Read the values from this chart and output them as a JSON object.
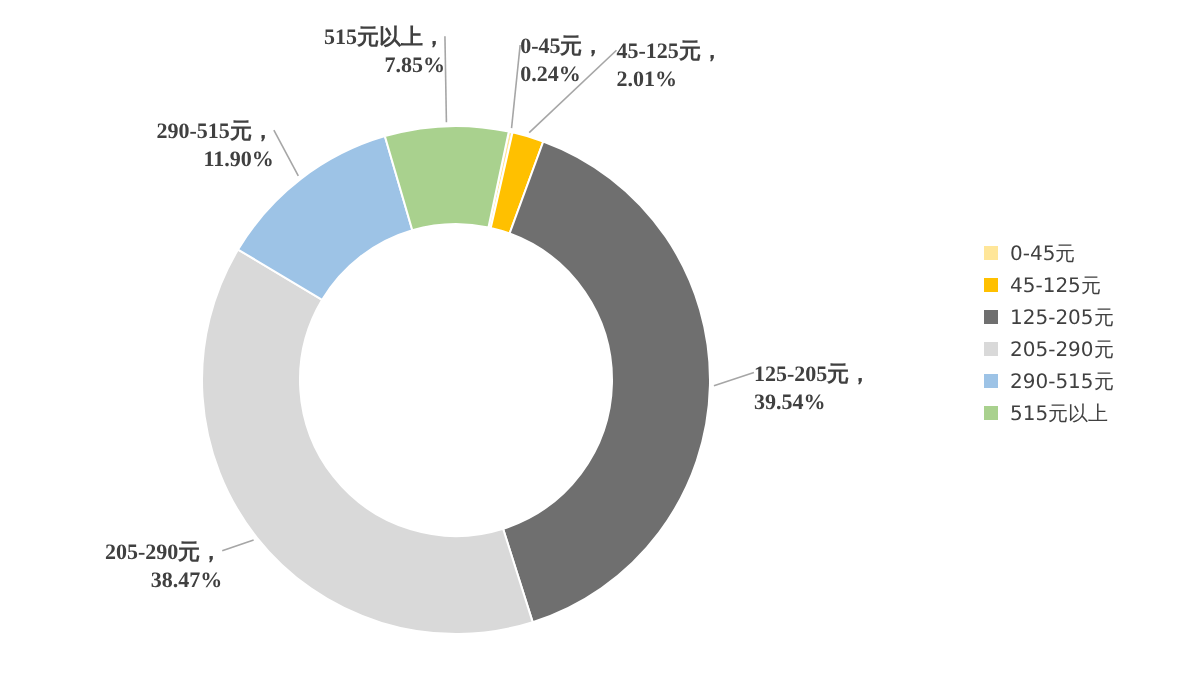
{
  "chart_data": {
    "type": "donut",
    "categories": [
      "0-45元",
      "45-125元",
      "125-205元",
      "205-290元",
      "290-515元",
      "515元以上"
    ],
    "values": [
      0.24,
      2.01,
      39.54,
      38.47,
      11.9,
      7.85
    ],
    "value_labels": [
      "0-45元，0.24%",
      "45-125元，2.01%",
      "125-205元，39.54%",
      "205-290元，38.47%",
      "290-515元，11.90%",
      "515元以上，7.85%"
    ],
    "colors": [
      "#ffe699",
      "#ffc000",
      "#6f6f6f",
      "#d9d9d9",
      "#9dc3e6",
      "#a9d18e"
    ],
    "legend": "right"
  }
}
